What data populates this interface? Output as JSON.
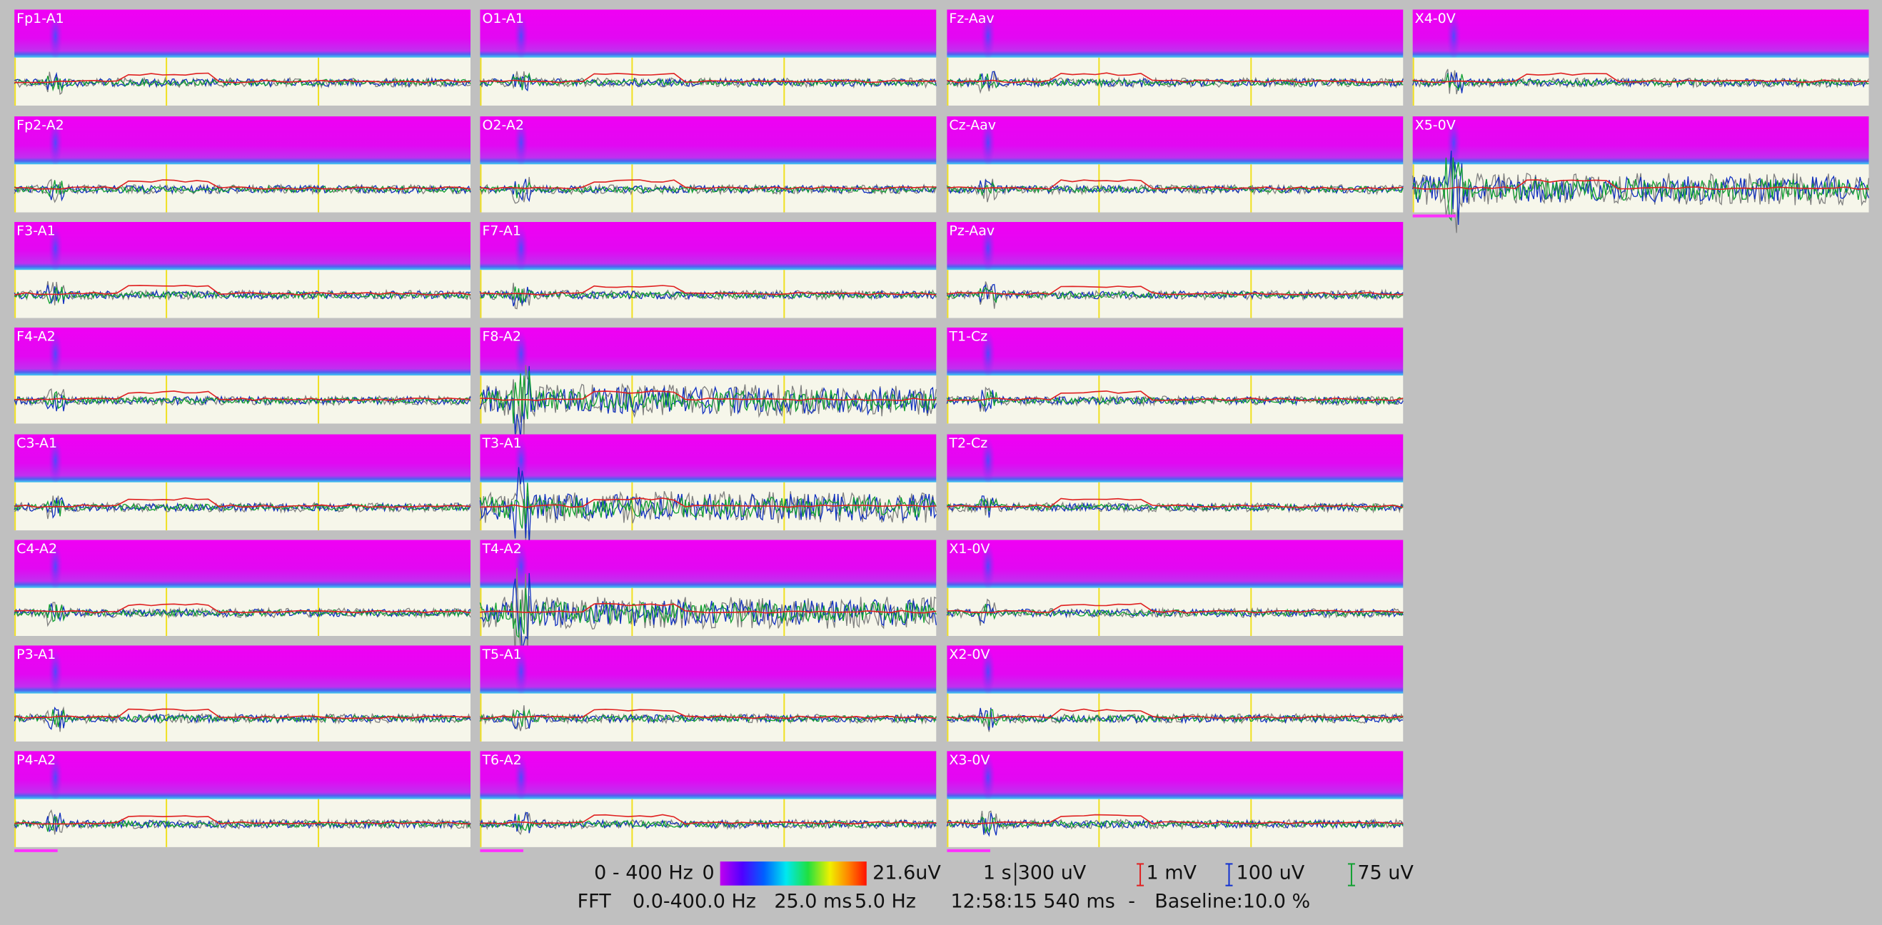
{
  "columns": [
    [
      "Fp1-A1",
      "Fp2-A2",
      "F3-A1",
      "F4-A2",
      "C3-A1",
      "C4-A2",
      "P3-A1",
      "P4-A2"
    ],
    [
      "O1-A1",
      "O2-A2",
      "F7-A1",
      "F8-A2",
      "T3-A1",
      "T4-A2",
      "T5-A1",
      "T6-A2"
    ],
    [
      "Fz-Aav",
      "Cz-Aav",
      "Pz-Aav",
      "T1-Cz",
      "T2-Cz",
      "X1-0V",
      "X2-0V",
      "X3-0V"
    ],
    [
      "X4-0V",
      "X5-0V"
    ]
  ],
  "footer": {
    "range": "0 - 400 Hz",
    "scale_min": "0",
    "scale_max": "21.6uV",
    "time_scale": "1 s",
    "amp_scale": "300 uV",
    "red_scale": "1 mV",
    "blue_scale": "100 uV",
    "green_scale": "75 uV",
    "fft": "FFT",
    "freq_range": "0.0-400.0 Hz",
    "window": "25.0 ms",
    "resolution": "5.0 Hz",
    "time": "12:58:15 540 ms",
    "separator": "-",
    "baseline": "Baseline:10.0 %"
  }
}
